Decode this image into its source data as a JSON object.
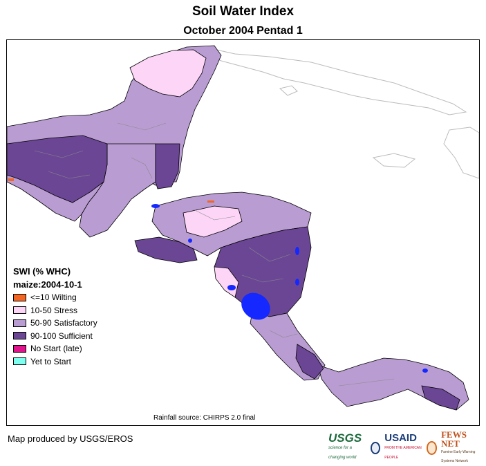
{
  "header": {
    "title": "Soil Water Index",
    "subtitle": "October 2004 Pentad 1"
  },
  "legend": {
    "title": "SWI (% WHC)",
    "subtitle": "maize:2004-10-1",
    "items": [
      {
        "label": "<=10 Wilting",
        "color": "#f26522"
      },
      {
        "label": "10-50 Stress",
        "color": "#fcd5f7"
      },
      {
        "label": "50-90 Satisfactory",
        "color": "#b99cd2"
      },
      {
        "label": "90-100 Sufficient",
        "color": "#6b4694"
      },
      {
        "label": "No Start (late)",
        "color": "#e0128c"
      },
      {
        "label": "Yet to Start",
        "color": "#7ffff0"
      }
    ]
  },
  "map": {
    "water_color": "#1428ff",
    "border_color": "#000000",
    "source_text": "Rainfall source: CHIRPS 2.0 final"
  },
  "footer": {
    "credit": "Map produced by USGS/EROS",
    "logos": {
      "usgs": "USGS",
      "usgs_tagline": "science for a changing world",
      "usaid": "USAID",
      "usaid_tagline": "FROM THE AMERICAN PEOPLE",
      "fews": "FEWS NET",
      "fews_tagline": "Famine Early Warning Systems Network"
    }
  }
}
